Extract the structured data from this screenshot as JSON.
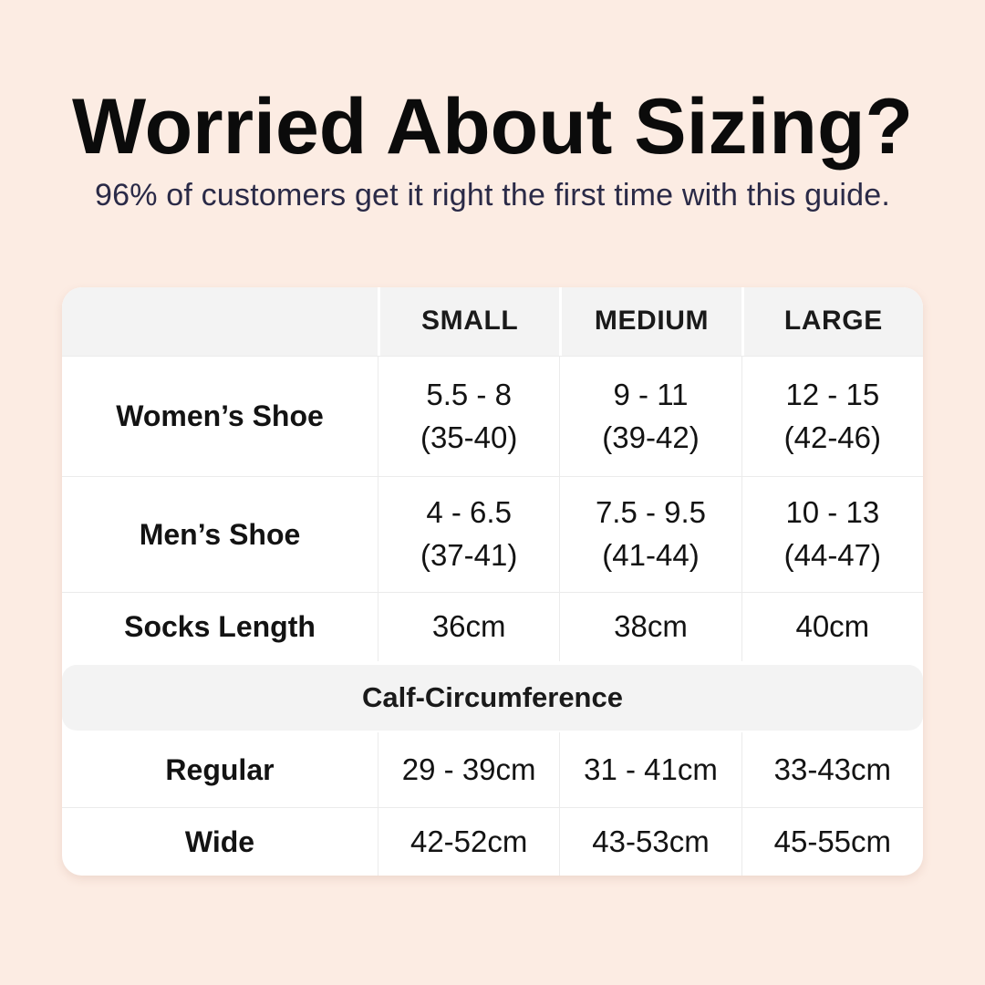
{
  "colors": {
    "background": "#fcece3",
    "card": "#ffffff",
    "header_fill": "#f3f3f3",
    "divider": "#ebebeb",
    "title_text": "#0b0b0b",
    "subtitle_text": "#2a2a47",
    "body_text": "#131313"
  },
  "chart_data": {
    "type": "table",
    "title": "Worried About Sizing?",
    "subtitle": "96% of customers get it right the first time with this guide.",
    "columns": [
      "",
      "SMALL",
      "MEDIUM",
      "LARGE"
    ],
    "rows": [
      {
        "label": "Women’s Shoe",
        "values": [
          "5.5 - 8\n(35-40)",
          "9 - 11\n(39-42)",
          "12 - 15\n(42-46)"
        ]
      },
      {
        "label": "Men’s Shoe",
        "values": [
          "4 - 6.5\n(37-41)",
          "7.5 - 9.5\n(41-44)",
          "10 - 13\n(44-47)"
        ]
      },
      {
        "label": "Socks Length",
        "values": [
          "36cm",
          "38cm",
          "40cm"
        ]
      },
      {
        "section": "Calf-Circumference"
      },
      {
        "label": "Regular",
        "values": [
          "29 - 39cm",
          "31 - 41cm",
          "33-43cm"
        ]
      },
      {
        "label": "Wide",
        "values": [
          "42-52cm",
          "43-53cm",
          "45-55cm"
        ]
      }
    ],
    "layout": {
      "grid": "on",
      "section_band_fill": "#f3f3f3",
      "header_band_fill": "#f3f3f3"
    }
  }
}
